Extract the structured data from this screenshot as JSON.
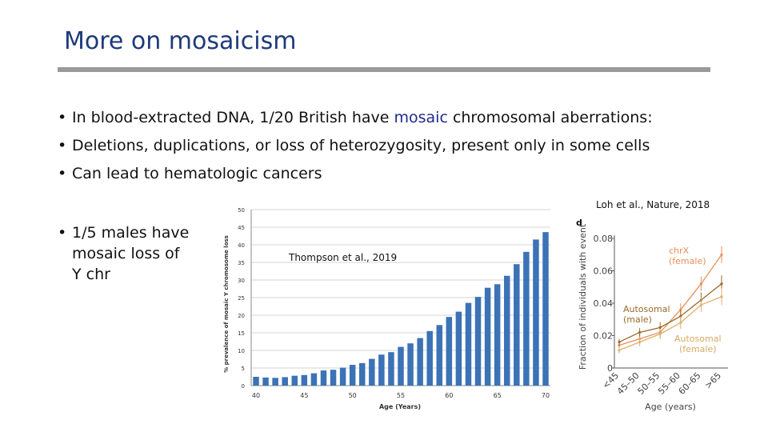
{
  "slide": {
    "title": "More on mosaicism",
    "bullets": [
      {
        "pre": "In blood-extracted DNA, 1/20 British have ",
        "hl": "mosaic",
        "post": " chromosomal aberrations:"
      },
      {
        "pre": "Deletions, duplications, or loss of heterozygosity, present only in some cells",
        "hl": "",
        "post": ""
      },
      {
        "pre": "Can lead to hematologic cancers",
        "hl": "",
        "post": ""
      }
    ],
    "side_bullet": {
      "line1": "1/5 males have",
      "line2": "mosaic loss of",
      "line3": "Y chr"
    },
    "citation_a": "Thompson et al., 2019",
    "citation_b": "Loh et al., Nature, 2018",
    "colors": {
      "title": "#1f3a7a",
      "bar": "#3c72b6",
      "chrx": "#e6905a",
      "male": "#9a6a28",
      "female": "#e0b070"
    }
  },
  "chart_data": [
    {
      "type": "bar",
      "xlabel": "Age (Years)",
      "ylabel": "% prevalence of mosaic Y chromosome loss",
      "ylim": [
        0,
        50
      ],
      "yticks": [
        0,
        5,
        10,
        15,
        20,
        25,
        30,
        35,
        40,
        45,
        50
      ],
      "xticks": [
        40,
        45,
        50,
        55,
        60,
        65,
        70
      ],
      "x": [
        40,
        41,
        42,
        43,
        44,
        45,
        46,
        47,
        48,
        49,
        50,
        51,
        52,
        53,
        54,
        55,
        56,
        57,
        58,
        59,
        60,
        61,
        62,
        63,
        64,
        65,
        66,
        67,
        68,
        69,
        70
      ],
      "values": [
        2.5,
        2.3,
        2.2,
        2.4,
        2.8,
        3.0,
        3.5,
        4.3,
        4.5,
        5.1,
        5.9,
        6.4,
        7.6,
        8.8,
        9.5,
        11.0,
        12.0,
        13.5,
        15.5,
        17.2,
        19.5,
        21.0,
        23.5,
        25.2,
        27.8,
        28.8,
        31.2,
        34.5,
        38.0,
        41.5,
        43.6
      ],
      "grid": true
    },
    {
      "type": "line",
      "panel_label": "d",
      "xlabel": "Age (years)",
      "ylabel": "Fraction of individuals with event",
      "categories": [
        "<45",
        "45–50",
        "50–55",
        "55–60",
        "60–65",
        ">65"
      ],
      "ylim": [
        0,
        0.08
      ],
      "yticks": [
        "0",
        "0.02",
        "0.04",
        "0.06",
        "0.08"
      ],
      "series": [
        {
          "name": "chrX (female)",
          "values": [
            0.014,
            0.018,
            0.022,
            0.036,
            0.052,
            0.07
          ]
        },
        {
          "name": "Autosomal (male)",
          "values": [
            0.016,
            0.022,
            0.025,
            0.032,
            0.042,
            0.052
          ]
        },
        {
          "name": "Autosomal (female)",
          "values": [
            0.011,
            0.016,
            0.021,
            0.028,
            0.039,
            0.044
          ]
        }
      ],
      "series_colors": [
        "#e6905a",
        "#9a6a28",
        "#e0b070"
      ],
      "labels": {
        "s0": "chrX",
        "s0b": "(female)",
        "s1": "Autosomal",
        "s1b": "(male)",
        "s2": "Autosomal",
        "s2b": "(female)"
      }
    }
  ]
}
